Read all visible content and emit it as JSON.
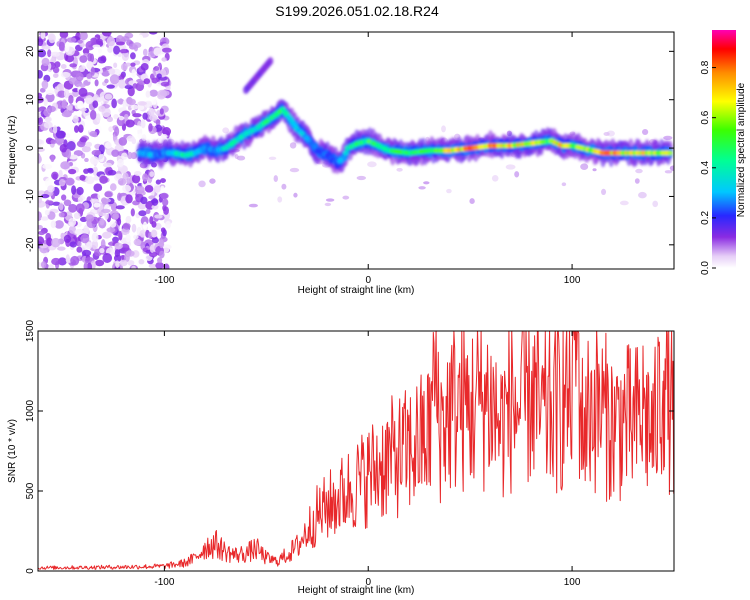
{
  "title": "S199.2026.051.02.18.R24",
  "chart_data": [
    {
      "type": "heatmap",
      "title": "S199.2026.051.02.18.R24",
      "xlabel": "Height of straight line (km)",
      "ylabel": "Frequency (Hz)",
      "xlim": [
        -162,
        150
      ],
      "ylim": [
        -25,
        24
      ],
      "xticks": [
        -100,
        0,
        100
      ],
      "yticks": [
        -20,
        -10,
        0,
        10,
        20
      ],
      "colorbar": {
        "label": "Normalized spectral amplitude",
        "range": [
          0,
          0.95
        ],
        "ticks": [
          0.0,
          0.2,
          0.4,
          0.6,
          0.8
        ]
      },
      "ridge": {
        "x": [
          -112,
          -105,
          -100,
          -95,
          -90,
          -85,
          -80,
          -75,
          -70,
          -65,
          -60,
          -55,
          -50,
          -45,
          -42,
          -38,
          -35,
          -30,
          -25,
          -20,
          -15,
          -12,
          -10,
          -5,
          0,
          5,
          10,
          20,
          30,
          40,
          50,
          60,
          70,
          80,
          90,
          95,
          100,
          105,
          110,
          115,
          120,
          130,
          140,
          148
        ],
        "y": [
          -1,
          -1.5,
          -1,
          -1,
          -1.5,
          -1,
          0,
          -0.5,
          0,
          1.5,
          3,
          4,
          5.5,
          7,
          8,
          6,
          4,
          2,
          -0.5,
          -1.5,
          -3,
          -2,
          0,
          1,
          1.5,
          0.5,
          -0.5,
          -1,
          -0.5,
          -0.5,
          0,
          0.5,
          0.5,
          1,
          1.5,
          0.5,
          0.5,
          0,
          -0.5,
          -1,
          -1,
          -1,
          -1,
          -1
        ],
        "amplitude": [
          0.35,
          0.3,
          0.3,
          0.4,
          0.45,
          0.4,
          0.35,
          0.3,
          0.4,
          0.45,
          0.4,
          0.45,
          0.5,
          0.55,
          0.5,
          0.45,
          0.4,
          0.35,
          0.3,
          0.25,
          0.3,
          0.35,
          0.45,
          0.5,
          0.55,
          0.55,
          0.5,
          0.55,
          0.6,
          0.75,
          0.85,
          0.85,
          0.8,
          0.7,
          0.6,
          0.85,
          0.65,
          0.6,
          0.75,
          0.85,
          0.8,
          0.75,
          0.7,
          0.65
        ]
      },
      "noise_region": {
        "x_range": [
          -162,
          -98
        ],
        "amplitude_max": 0.15
      }
    },
    {
      "type": "line",
      "xlabel": "Height of straight line (km)",
      "ylabel": "SNR (10 * v/v)",
      "xlim": [
        -162,
        150
      ],
      "ylim": [
        0,
        1500
      ],
      "xticks": [
        -100,
        0,
        100
      ],
      "yticks": [
        0,
        500,
        1000,
        1500
      ],
      "series": [
        {
          "name": "SNR",
          "color": "#e8282a",
          "x": [
            -162,
            -140,
            -120,
            -100,
            -90,
            -85,
            -80,
            -75,
            -70,
            -65,
            -60,
            -55,
            -50,
            -45,
            -40,
            -35,
            -30,
            -25,
            -20,
            -15,
            -10,
            -5,
            0,
            5,
            10,
            15,
            20,
            25,
            30,
            33,
            35,
            40,
            45,
            50,
            55,
            60,
            65,
            70,
            75,
            80,
            85,
            90,
            95,
            100,
            102,
            105,
            110,
            115,
            120,
            125,
            130,
            135,
            140,
            145,
            150
          ],
          "y": [
            20,
            22,
            25,
            30,
            50,
            80,
            150,
            170,
            120,
            100,
            110,
            140,
            80,
            60,
            100,
            150,
            250,
            350,
            400,
            450,
            500,
            550,
            600,
            650,
            700,
            720,
            750,
            800,
            850,
            1300,
            900,
            1000,
            1050,
            1000,
            1100,
            1050,
            900,
            1050,
            1000,
            1150,
            950,
            1000,
            1050,
            1150,
            1500,
            900,
            1050,
            1000,
            900,
            950,
            900,
            1000,
            850,
            1250,
            900
          ]
        }
      ]
    }
  ]
}
